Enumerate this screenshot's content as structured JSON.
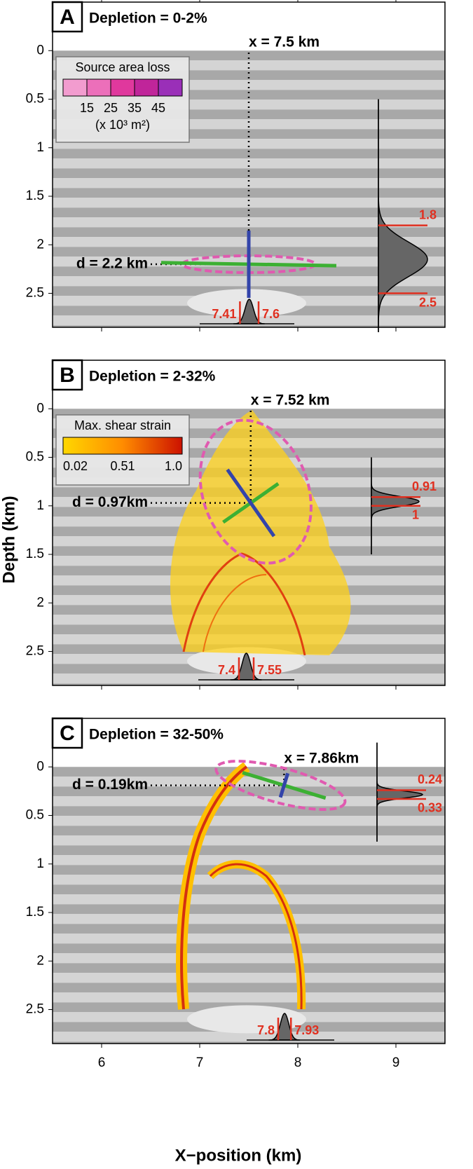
{
  "chart_data": {
    "type": "panels",
    "xlim": [
      5.5,
      9.5
    ],
    "xticks": [
      6,
      7,
      8,
      9
    ],
    "xlabel": "X−position (km)",
    "ylabel": "Depth (km)",
    "ylim": [
      -0.5,
      2.85
    ],
    "yticks": [
      0,
      0.5,
      1,
      1.5,
      2,
      2.5
    ],
    "panels": [
      {
        "letter": "A",
        "title": "Depletion = 0-2%",
        "x_marker": {
          "value": 7.5,
          "label": "x = 7.5 km"
        },
        "d_marker": {
          "value": 2.2,
          "label": "d = 2.2 km"
        },
        "x_range": [
          7.41,
          7.6
        ],
        "depth_range": [
          1.8,
          2.5
        ],
        "legend": {
          "title": "Source area loss",
          "colors": [
            "#f29ccf",
            "#ec6fba",
            "#e0389d",
            "#c0259a",
            "#9a2fb8"
          ],
          "ticks": [
            15,
            25,
            35,
            45
          ],
          "unit": "(x 10³ m²)"
        }
      },
      {
        "letter": "B",
        "title": "Depletion = 2-32%",
        "x_marker": {
          "value": 7.52,
          "label": "x = 7.52 km"
        },
        "d_marker": {
          "value": 0.97,
          "label": "d = 0.97km"
        },
        "x_range": [
          7.4,
          7.55
        ],
        "depth_range": [
          0.91,
          1
        ],
        "legend": {
          "title": "Max. shear strain",
          "colors": [
            "#ffd700",
            "#ff8c00",
            "#cc1100"
          ],
          "ticks": [
            0.02,
            0.51,
            {
              "value": 1,
              "label": "1.0"
            }
          ]
        }
      },
      {
        "letter": "C",
        "title": "Depletion = 32-50%",
        "x_marker": {
          "value": 7.86,
          "label": "x = 7.86km"
        },
        "d_marker": {
          "value": 0.19,
          "label": "d = 0.19km"
        },
        "x_range": [
          7.8,
          7.93
        ],
        "depth_range": [
          0.24,
          0.33
        ]
      }
    ]
  }
}
